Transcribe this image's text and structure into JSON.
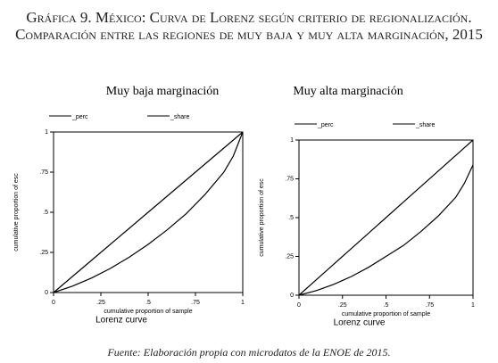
{
  "title": "Gráfica 9. México: Curva de Lorenz según criterio de regionalización. Comparación entre las regiones de muy baja y muy alta marginación, 2015",
  "source": "Fuente: Elaboración propia con microdatos de la ENOE de 2015.",
  "chart_data": [
    {
      "type": "line",
      "title": "Muy baja marginación",
      "xlabel": "cumulative proportion of sample",
      "ylabel": "cumulative proportion of esc",
      "caption": "Lorenz curve",
      "x": [
        0,
        0.1,
        0.2,
        0.3,
        0.4,
        0.5,
        0.6,
        0.7,
        0.8,
        0.9,
        0.95,
        1
      ],
      "series": [
        {
          "name": "_perc",
          "color": "#000000",
          "values": [
            0,
            0.1,
            0.2,
            0.3,
            0.4,
            0.5,
            0.6,
            0.7,
            0.8,
            0.9,
            0.95,
            1
          ]
        },
        {
          "name": "_share",
          "color": "#000000",
          "values": [
            0,
            0.04,
            0.09,
            0.15,
            0.22,
            0.3,
            0.39,
            0.49,
            0.61,
            0.75,
            0.85,
            1
          ]
        }
      ],
      "xlim": [
        0,
        1
      ],
      "ylim": [
        0,
        1
      ],
      "xticks": [
        0,
        {
          "value": 0.25,
          "label": ".25"
        },
        {
          "value": 0.5,
          "label": ".5"
        },
        {
          "value": 0.75,
          "label": ".75"
        },
        1
      ],
      "yticks": [
        0,
        {
          "value": 0.25,
          "label": ".25"
        },
        {
          "value": 0.5,
          "label": ".5"
        },
        {
          "value": 0.75,
          "label": ".75"
        },
        1
      ]
    },
    {
      "type": "line",
      "title": "Muy alta marginación",
      "xlabel": "cumulative proportion of sample",
      "ylabel": "cumulative proportion of esc",
      "caption": "Lorenz curve",
      "x": [
        0,
        0.1,
        0.2,
        0.3,
        0.4,
        0.5,
        0.6,
        0.7,
        0.8,
        0.9,
        0.95,
        1
      ],
      "series": [
        {
          "name": "_perc",
          "color": "#000000",
          "values": [
            0,
            0.1,
            0.2,
            0.3,
            0.4,
            0.5,
            0.6,
            0.7,
            0.8,
            0.9,
            0.95,
            1
          ]
        },
        {
          "name": "_share",
          "color": "#000000",
          "values": [
            0,
            0.03,
            0.07,
            0.12,
            0.18,
            0.25,
            0.32,
            0.41,
            0.51,
            0.63,
            0.72,
            0.84
          ]
        }
      ],
      "xlim": [
        0,
        1
      ],
      "ylim": [
        0,
        1
      ],
      "xticks": [
        0,
        {
          "value": 0.25,
          "label": ".25"
        },
        {
          "value": 0.5,
          "label": ".5"
        },
        {
          "value": 0.75,
          "label": ".75"
        },
        1
      ],
      "yticks": [
        0,
        {
          "value": 0.25,
          "label": ".25"
        },
        {
          "value": 0.5,
          "label": ".5"
        },
        {
          "value": 0.75,
          "label": ".75"
        },
        1
      ]
    }
  ]
}
